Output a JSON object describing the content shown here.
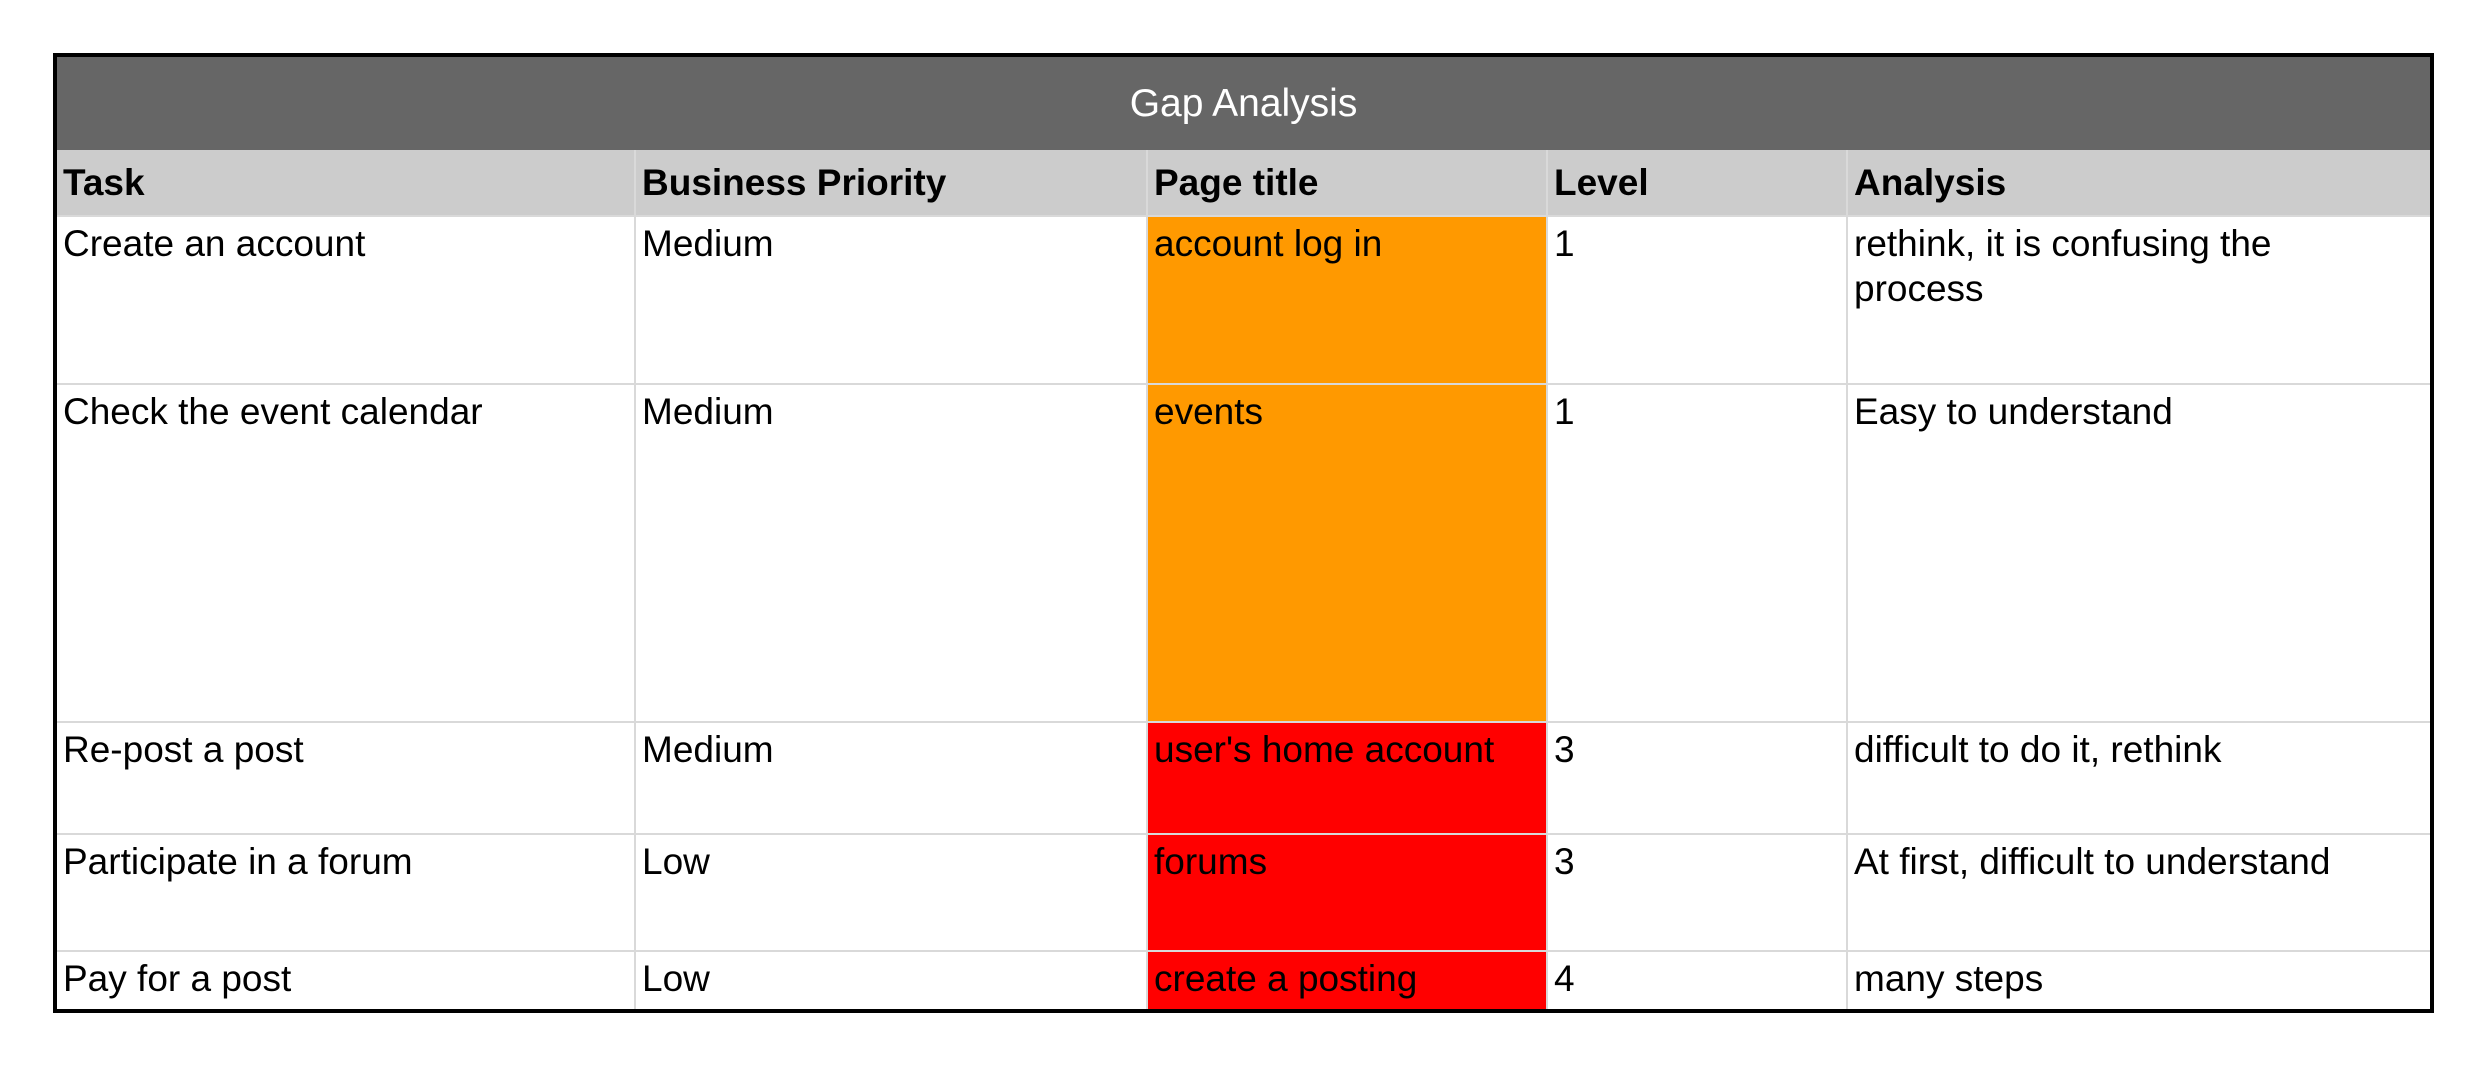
{
  "table": {
    "title": "Gap Analysis",
    "columns": [
      "Task",
      "Business Priority",
      "Page title",
      "Level",
      "Analysis"
    ],
    "rows": [
      {
        "task": "Create an account",
        "priority": "Medium",
        "page_title": "account log in",
        "page_title_color": "#ff9900",
        "level": "1",
        "analysis": "rethink, it is confusing the process"
      },
      {
        "task": "Check the event calendar",
        "priority": "Medium",
        "page_title": "events",
        "page_title_color": "#ff9900",
        "level": "1",
        "analysis": "Easy to understand"
      },
      {
        "task": "Re-post a post",
        "priority": "Medium",
        "page_title": "user's home account",
        "page_title_color": "#ff0000",
        "level": "3",
        "analysis": "difficult to do it, rethink"
      },
      {
        "task": "Participate in a forum",
        "priority": "Low",
        "page_title": "forums",
        "page_title_color": "#ff0000",
        "level": "3",
        "analysis": "At first, difficult to understand"
      },
      {
        "task": "Pay for a post",
        "priority": "Low",
        "page_title": "create a posting",
        "page_title_color": "#ff0000",
        "level": "4",
        "analysis": "many steps"
      }
    ],
    "colors": {
      "title_bg": "#666666",
      "title_text": "#ffffff",
      "header_bg": "#cccccc",
      "grid_line": "#d9d9d9",
      "outer_border": "#000000",
      "status_orange": "#ff9900",
      "status_red": "#ff0000"
    }
  }
}
